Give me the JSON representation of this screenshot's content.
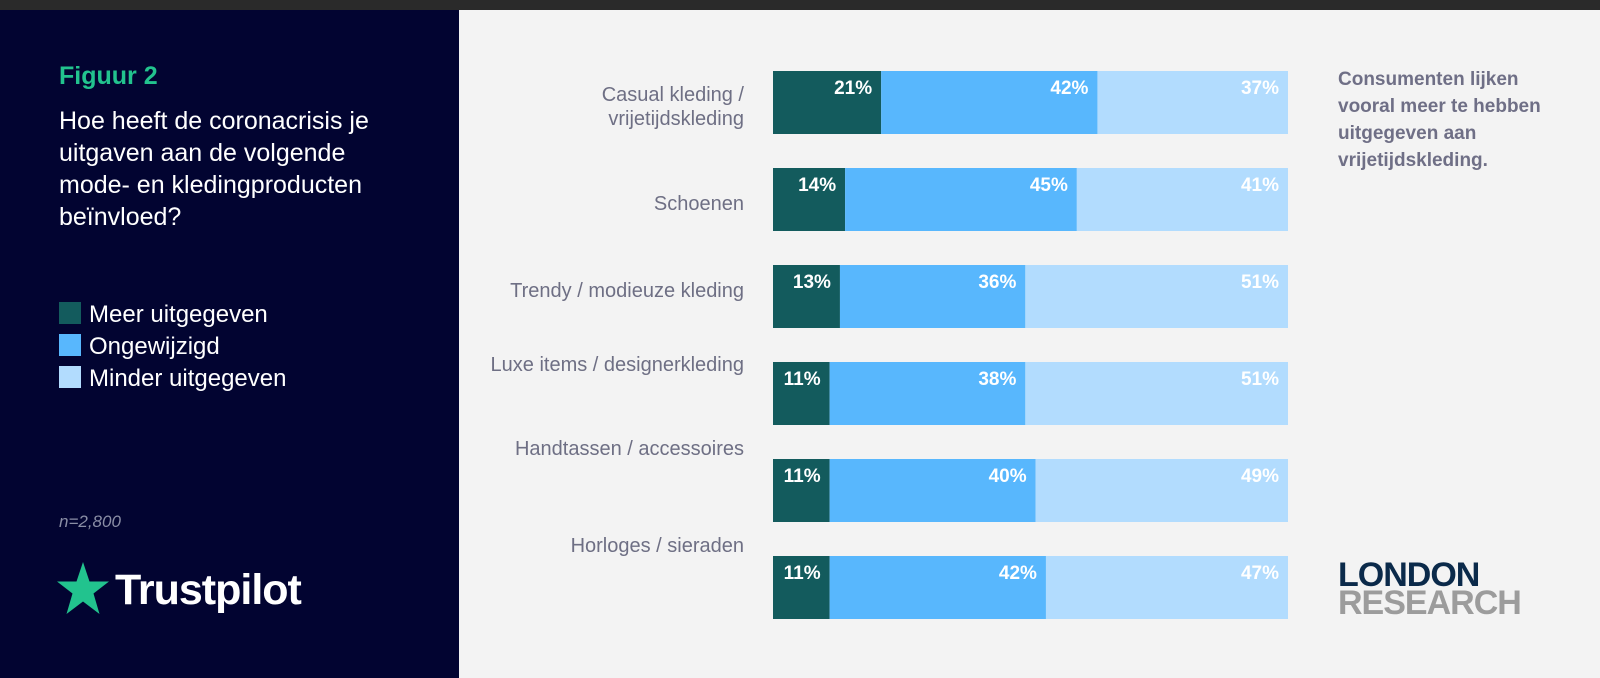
{
  "figure": {
    "label": "Figuur 2",
    "question": "Hoe heeft de coronacrisis je uitgaven aan de volgende mode- en kledingproducten beïnvloed?",
    "sample": "n=2,800",
    "brand": "Trustpilot",
    "side_note": "Consumenten lijken vooral meer te hebben uitgegeven aan vrijetijdskleding.",
    "publisher_line1": "LONDON",
    "publisher_line2": "RESEARCH"
  },
  "colors": {
    "meer": "#135b5d",
    "ongewijzigd": "#58b7fd",
    "minder": "#b2dcfe",
    "category_label": "#6e6f84",
    "value_label": "#ffffff"
  },
  "chart_data": {
    "type": "bar",
    "orientation": "horizontal",
    "stacked": true,
    "title": "Hoe heeft de coronacrisis je uitgaven aan de volgende mode- en kledingproducten beïnvloed?",
    "categories": [
      "Casual kleding / vrijetijdskleding",
      "Schoenen",
      "Trendy / modieuze kleding",
      "Luxe items / designerkleding",
      "Handtassen / accessoires",
      "Horloges / sieraden"
    ],
    "series": [
      {
        "name": "Meer uitgegeven",
        "values": [
          21,
          14,
          13,
          11,
          11,
          11
        ]
      },
      {
        "name": "Ongewijzigd",
        "values": [
          42,
          45,
          36,
          38,
          40,
          42
        ]
      },
      {
        "name": "Minder uitgegeven",
        "values": [
          37,
          41,
          51,
          51,
          49,
          47
        ]
      }
    ],
    "value_suffix": "%",
    "xlim": [
      0,
      100
    ],
    "legend": "left"
  }
}
